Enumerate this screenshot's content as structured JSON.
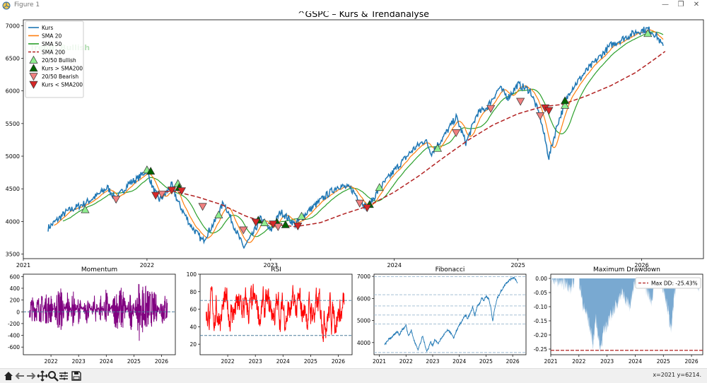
{
  "window": {
    "title": "Figure 1",
    "controls": [
      "minimize",
      "maximize",
      "close"
    ],
    "status_coords": "x=2021 y=6214."
  },
  "toolbar": {
    "icons": [
      "home-icon",
      "back-icon",
      "forward-icon",
      "pan-icon",
      "zoom-icon",
      "configure-icon",
      "save-icon"
    ]
  },
  "colors": {
    "price": "#1f77b4",
    "sma20": "#ff7f0e",
    "sma50": "#2ca02c",
    "sma200": "#b22222",
    "bull_cross": "#90ee90",
    "price_above": "#006400",
    "bear_cross": "#f08080",
    "price_below": "#d62728",
    "momentum": "#800080",
    "rsi": "#ff0000",
    "ref_lines": "#4a7a9a",
    "drawdown_fill": "#79a9d1",
    "maxdd_line": "#b22222"
  },
  "chart_data": [
    {
      "id": "main",
      "type": "line",
      "title": "^GSPC – Kurs & Trendanalyse",
      "annotation": "Trend: Bullish",
      "xlabel": "",
      "ylabel": "",
      "x_ticks": [
        "2021",
        "2022",
        "2023",
        "2024",
        "2025",
        "2026"
      ],
      "y_ticks": [
        3500,
        4000,
        4500,
        5000,
        5500,
        6000,
        6500,
        7000
      ],
      "xlim": [
        2021.0,
        2026.5
      ],
      "ylim": [
        3430,
        7090
      ],
      "legend_position": "top-left",
      "legend": [
        "Kurs",
        "SMA 20",
        "SMA 50",
        "SMA 200",
        "20/50 Bullish",
        "Kurs > SMA200",
        "20/50 Bearish",
        "Kurs < SMA200"
      ],
      "price_keypoints": [
        [
          2021.2,
          3900
        ],
        [
          2021.35,
          4150
        ],
        [
          2021.5,
          4280
        ],
        [
          2021.6,
          4400
        ],
        [
          2021.68,
          4520
        ],
        [
          2021.75,
          4340
        ],
        [
          2021.85,
          4580
        ],
        [
          2021.92,
          4650
        ],
        [
          2022.0,
          4790
        ],
        [
          2022.05,
          4500
        ],
        [
          2022.1,
          4330
        ],
        [
          2022.15,
          4420
        ],
        [
          2022.2,
          4560
        ],
        [
          2022.25,
          4300
        ],
        [
          2022.35,
          3950
        ],
        [
          2022.45,
          3700
        ],
        [
          2022.55,
          4000
        ],
        [
          2022.62,
          4300
        ],
        [
          2022.7,
          3950
        ],
        [
          2022.78,
          3600
        ],
        [
          2022.85,
          3780
        ],
        [
          2022.92,
          4050
        ],
        [
          2023.0,
          3850
        ],
        [
          2023.08,
          4150
        ],
        [
          2023.2,
          3950
        ],
        [
          2023.3,
          4150
        ],
        [
          2023.45,
          4400
        ],
        [
          2023.55,
          4550
        ],
        [
          2023.65,
          4500
        ],
        [
          2023.78,
          4200
        ],
        [
          2023.88,
          4500
        ],
        [
          2024.0,
          4780
        ],
        [
          2024.15,
          5100
        ],
        [
          2024.25,
          5250
        ],
        [
          2024.3,
          5050
        ],
        [
          2024.4,
          5300
        ],
        [
          2024.5,
          5600
        ],
        [
          2024.58,
          5200
        ],
        [
          2024.67,
          5650
        ],
        [
          2024.75,
          5750
        ],
        [
          2024.85,
          6050
        ],
        [
          2024.92,
          5900
        ],
        [
          2025.0,
          6100
        ],
        [
          2025.1,
          6000
        ],
        [
          2025.18,
          5600
        ],
        [
          2025.25,
          4980
        ],
        [
          2025.32,
          5500
        ],
        [
          2025.42,
          6000
        ],
        [
          2025.55,
          6300
        ],
        [
          2025.65,
          6500
        ],
        [
          2025.75,
          6700
        ],
        [
          2025.85,
          6800
        ],
        [
          2025.95,
          6900
        ],
        [
          2026.05,
          6950
        ],
        [
          2026.12,
          6850
        ],
        [
          2026.18,
          6650
        ]
      ],
      "sma200_keypoints": [
        [
          2022.05,
          4420
        ],
        [
          2022.2,
          4470
        ],
        [
          2022.4,
          4380
        ],
        [
          2022.6,
          4260
        ],
        [
          2022.8,
          4080
        ],
        [
          2023.0,
          3960
        ],
        [
          2023.2,
          3920
        ],
        [
          2023.4,
          3980
        ],
        [
          2023.6,
          4120
        ],
        [
          2023.78,
          4230
        ],
        [
          2024.0,
          4450
        ],
        [
          2024.2,
          4700
        ],
        [
          2024.4,
          4980
        ],
        [
          2024.6,
          5250
        ],
        [
          2024.8,
          5480
        ],
        [
          2025.0,
          5650
        ],
        [
          2025.2,
          5760
        ],
        [
          2025.35,
          5790
        ],
        [
          2025.55,
          5920
        ],
        [
          2025.75,
          6080
        ],
        [
          2025.95,
          6280
        ],
        [
          2026.1,
          6480
        ],
        [
          2026.2,
          6620
        ]
      ],
      "markers": [
        {
          "kind": "20/50 Bullish",
          "x": 2021.5,
          "y": 4180
        },
        {
          "kind": "20/50 Bullish",
          "x": 2022.0,
          "y": 4790
        },
        {
          "kind": "20/50 Bullish",
          "x": 2022.25,
          "y": 4580
        },
        {
          "kind": "20/50 Bullish",
          "x": 2022.58,
          "y": 4100
        },
        {
          "kind": "20/50 Bullish",
          "x": 2022.95,
          "y": 3980
        },
        {
          "kind": "20/50 Bullish",
          "x": 2023.25,
          "y": 4080
        },
        {
          "kind": "20/50 Bullish",
          "x": 2023.88,
          "y": 4520
        },
        {
          "kind": "20/50 Bullish",
          "x": 2024.35,
          "y": 5120
        },
        {
          "kind": "20/50 Bullish",
          "x": 2025.38,
          "y": 5780
        },
        {
          "kind": "20/50 Bullish",
          "x": 2026.05,
          "y": 6880
        },
        {
          "kind": "Kurs > SMA200",
          "x": 2022.03,
          "y": 4770
        },
        {
          "kind": "Kurs > SMA200",
          "x": 2022.26,
          "y": 4520
        },
        {
          "kind": "Kurs > SMA200",
          "x": 2022.9,
          "y": 4020
        },
        {
          "kind": "Kurs > SMA200",
          "x": 2023.05,
          "y": 3990
        },
        {
          "kind": "Kurs > SMA200",
          "x": 2023.12,
          "y": 3950
        },
        {
          "kind": "Kurs > SMA200",
          "x": 2023.8,
          "y": 4260
        },
        {
          "kind": "Kurs > SMA200",
          "x": 2025.38,
          "y": 5850
        },
        {
          "kind": "20/50 Bearish",
          "x": 2021.75,
          "y": 4340
        },
        {
          "kind": "20/50 Bearish",
          "x": 2022.12,
          "y": 4420
        },
        {
          "kind": "20/50 Bearish",
          "x": 2022.45,
          "y": 4230
        },
        {
          "kind": "20/50 Bearish",
          "x": 2022.78,
          "y": 3870
        },
        {
          "kind": "20/50 Bearish",
          "x": 2023.06,
          "y": 3920
        },
        {
          "kind": "20/50 Bearish",
          "x": 2023.72,
          "y": 4280
        },
        {
          "kind": "20/50 Bearish",
          "x": 2024.5,
          "y": 5360
        },
        {
          "kind": "20/50 Bearish",
          "x": 2024.78,
          "y": 5730
        },
        {
          "kind": "20/50 Bearish",
          "x": 2025.02,
          "y": 5840
        },
        {
          "kind": "20/50 Bearish",
          "x": 2025.18,
          "y": 5620
        },
        {
          "kind": "Kurs < SMA200",
          "x": 2022.07,
          "y": 4400
        },
        {
          "kind": "Kurs < SMA200",
          "x": 2022.2,
          "y": 4480
        },
        {
          "kind": "Kurs < SMA200",
          "x": 2022.28,
          "y": 4470
        },
        {
          "kind": "Kurs < SMA200",
          "x": 2022.88,
          "y": 3990
        },
        {
          "kind": "Kurs < SMA200",
          "x": 2023.02,
          "y": 3960
        },
        {
          "kind": "Kurs < SMA200",
          "x": 2023.22,
          "y": 3930
        },
        {
          "kind": "Kurs < SMA200",
          "x": 2023.78,
          "y": 4210
        },
        {
          "kind": "Kurs < SMA200",
          "x": 2025.22,
          "y": 5740
        },
        {
          "kind": "Kurs < SMA200",
          "x": 2025.25,
          "y": 5700
        }
      ]
    },
    {
      "id": "momentum",
      "type": "line",
      "title": "Momentum",
      "x_ticks": [
        "2022",
        "2023",
        "2024",
        "2025",
        "2026"
      ],
      "y_ticks": [
        -600,
        -400,
        -200,
        0,
        200,
        400,
        600
      ],
      "xlim": [
        2021.0,
        2026.5
      ],
      "ylim": [
        -730,
        640
      ],
      "zero_line": 0,
      "envelope": [
        [
          2021.2,
          230
        ],
        [
          2021.5,
          240
        ],
        [
          2021.8,
          280
        ],
        [
          2022.0,
          300
        ],
        [
          2022.2,
          -380
        ],
        [
          2022.4,
          -440
        ],
        [
          2022.6,
          420
        ],
        [
          2022.8,
          -400
        ],
        [
          2023.0,
          300
        ],
        [
          2023.3,
          -300
        ],
        [
          2023.6,
          320
        ],
        [
          2023.8,
          -320
        ],
        [
          2024.0,
          420
        ],
        [
          2024.3,
          -350
        ],
        [
          2024.6,
          -450
        ],
        [
          2024.9,
          430
        ],
        [
          2025.2,
          -650
        ],
        [
          2025.3,
          560
        ],
        [
          2025.5,
          380
        ],
        [
          2025.8,
          300
        ],
        [
          2026.0,
          -300
        ],
        [
          2026.2,
          -280
        ]
      ]
    },
    {
      "id": "rsi",
      "type": "line",
      "title": "RSI",
      "x_ticks": [
        "2022",
        "2023",
        "2024",
        "2025",
        "2026"
      ],
      "y_ticks": [
        20,
        40,
        60,
        80,
        100
      ],
      "xlim": [
        2021.0,
        2026.5
      ],
      "ylim": [
        8,
        100
      ],
      "ref_lines": [
        70,
        30
      ],
      "range": [
        12,
        97
      ]
    },
    {
      "id": "fibonacci",
      "type": "line",
      "title": "Fibonacci",
      "x_ticks": [
        "2021",
        "2022",
        "2023",
        "2024",
        "2025",
        "2026"
      ],
      "y_ticks": [
        4000,
        5000,
        6000,
        7000
      ],
      "xlim": [
        2020.8,
        2026.5
      ],
      "ylim": [
        3450,
        7100
      ],
      "levels": [
        6990,
        6170,
        5660,
        5250,
        4840,
        3550
      ]
    },
    {
      "id": "drawdown",
      "type": "area",
      "title": "Maximum Drawdown",
      "x_ticks": [
        "2021",
        "2022",
        "2023",
        "2024",
        "2025",
        "2026"
      ],
      "y_ticks": [
        0.0,
        -0.05,
        -0.1,
        -0.15,
        -0.2,
        -0.25
      ],
      "xlim": [
        2021.0,
        2026.4
      ],
      "ylim": [
        -0.27,
        0.015
      ],
      "legend": "Max DD: -25.43%",
      "max_dd": -0.2543,
      "drawdown_keypoints": [
        [
          2021.0,
          0
        ],
        [
          2021.6,
          -0.02
        ],
        [
          2021.7,
          -0.04
        ],
        [
          2021.85,
          0
        ],
        [
          2022.0,
          0
        ],
        [
          2022.15,
          -0.1
        ],
        [
          2022.3,
          -0.13
        ],
        [
          2022.5,
          -0.23
        ],
        [
          2022.6,
          -0.14
        ],
        [
          2022.75,
          -0.25
        ],
        [
          2022.9,
          -0.18
        ],
        [
          2023.1,
          -0.14
        ],
        [
          2023.3,
          -0.1
        ],
        [
          2023.5,
          -0.05
        ],
        [
          2023.7,
          -0.08
        ],
        [
          2023.82,
          -0.1
        ],
        [
          2024.0,
          0
        ],
        [
          2024.3,
          -0.02
        ],
        [
          2024.6,
          -0.08
        ],
        [
          2024.7,
          0
        ],
        [
          2025.0,
          -0.03
        ],
        [
          2025.15,
          -0.1
        ],
        [
          2025.27,
          -0.19
        ],
        [
          2025.4,
          -0.05
        ],
        [
          2025.55,
          0
        ],
        [
          2026.2,
          0
        ],
        [
          2026.25,
          -0.04
        ],
        [
          2026.3,
          0
        ]
      ]
    }
  ]
}
